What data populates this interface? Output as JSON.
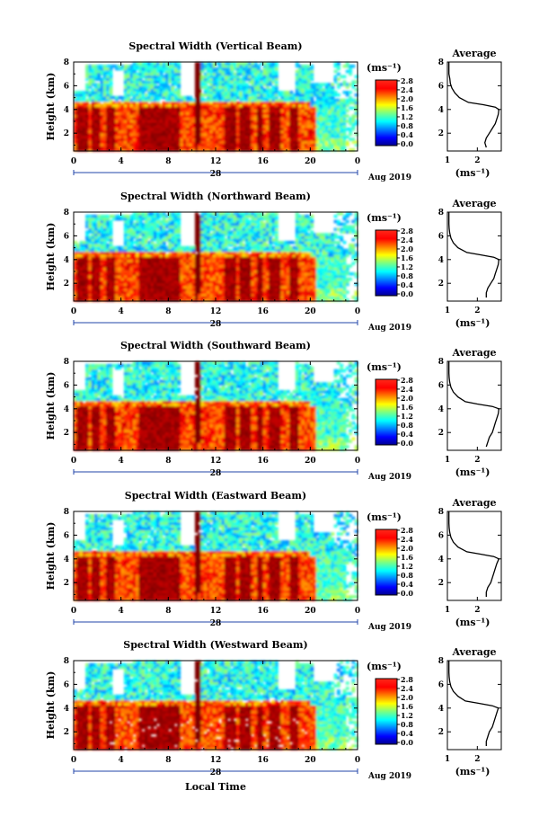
{
  "figure": {
    "xlabel": "Local Time",
    "y_axis_label": "Height (km)",
    "x_ticks": [
      "0",
      "4",
      "8",
      "12",
      "16",
      "20",
      "0"
    ],
    "day_label": "28",
    "month_label": "Aug 2019",
    "colorbar_unit": "(ms⁻¹)",
    "colorbar_ticks": [
      "0.0",
      "0.4",
      "0.8",
      "1.2",
      "1.6",
      "2.0",
      "2.4",
      "2.8"
    ],
    "profile_title": "Average",
    "profile_unit": "(ms⁻¹)",
    "profile_x_ticks": [
      "1",
      "2"
    ],
    "height_ticks": [
      "2",
      "4",
      "6",
      "8"
    ]
  },
  "chart_data": [
    {
      "type": "heatmap",
      "title": "Spectral Width (Vertical Beam)",
      "xlabel": "",
      "ylabel": "Height (km)",
      "xlim": [
        0,
        24
      ],
      "ylim": [
        0.5,
        8
      ],
      "clim": [
        0.0,
        2.8
      ],
      "colormap": "jet",
      "profile": {
        "title": "Average",
        "xlabel": "(ms⁻¹)",
        "xlim": [
          1,
          2.8
        ],
        "ylim": [
          0.5,
          8
        ],
        "heights": [
          0.8,
          1.2,
          1.6,
          2.0,
          2.4,
          2.8,
          3.2,
          3.6,
          4.0,
          4.2,
          4.4,
          4.6,
          5.0,
          5.4,
          5.8,
          6.2,
          6.6,
          7.0,
          7.5,
          8.0
        ],
        "values": [
          2.3,
          2.25,
          2.3,
          2.4,
          2.5,
          2.6,
          2.65,
          2.7,
          2.72,
          2.6,
          2.2,
          1.7,
          1.4,
          1.25,
          1.15,
          1.1,
          1.08,
          1.05,
          1.05,
          1.05
        ]
      }
    },
    {
      "type": "heatmap",
      "title": "Spectral Width (Northward Beam)",
      "xlabel": "",
      "ylabel": "Height (km)",
      "xlim": [
        0,
        24
      ],
      "ylim": [
        0.5,
        8
      ],
      "clim": [
        0.0,
        2.8
      ],
      "colormap": "jet",
      "profile": {
        "title": "Average",
        "xlabel": "(ms⁻¹)",
        "xlim": [
          1,
          2.8
        ],
        "ylim": [
          0.5,
          8
        ],
        "heights": [
          0.8,
          1.2,
          1.6,
          2.0,
          2.4,
          2.8,
          3.2,
          3.6,
          4.0,
          4.2,
          4.4,
          4.6,
          5.0,
          5.4,
          5.8,
          6.2,
          6.6,
          7.0,
          7.5,
          8.0
        ],
        "values": [
          2.3,
          2.3,
          2.35,
          2.45,
          2.55,
          2.6,
          2.65,
          2.7,
          2.72,
          2.55,
          2.1,
          1.65,
          1.35,
          1.2,
          1.12,
          1.08,
          1.06,
          1.05,
          1.05,
          1.05
        ]
      }
    },
    {
      "type": "heatmap",
      "title": "Spectral Width (Southward Beam)",
      "xlabel": "",
      "ylabel": "Height (km)",
      "xlim": [
        0,
        24
      ],
      "ylim": [
        0.5,
        8
      ],
      "clim": [
        0.0,
        2.8
      ],
      "colormap": "jet",
      "profile": {
        "title": "Average",
        "xlabel": "(ms⁻¹)",
        "xlim": [
          1,
          2.8
        ],
        "ylim": [
          0.5,
          8
        ],
        "heights": [
          0.8,
          1.2,
          1.6,
          2.0,
          2.4,
          2.8,
          3.2,
          3.6,
          4.0,
          4.2,
          4.4,
          4.6,
          5.0,
          5.4,
          5.8,
          6.2,
          6.6,
          7.0,
          7.5,
          8.0
        ],
        "values": [
          2.3,
          2.35,
          2.4,
          2.5,
          2.55,
          2.6,
          2.65,
          2.7,
          2.72,
          2.5,
          2.0,
          1.6,
          1.35,
          1.2,
          1.12,
          1.08,
          1.06,
          1.05,
          1.05,
          1.05
        ]
      }
    },
    {
      "type": "heatmap",
      "title": "Spectral Width (Eastward Beam)",
      "xlabel": "",
      "ylabel": "Height (km)",
      "xlim": [
        0,
        24
      ],
      "ylim": [
        0.5,
        8
      ],
      "clim": [
        0.0,
        2.8
      ],
      "colormap": "jet",
      "profile": {
        "title": "Average",
        "xlabel": "(ms⁻¹)",
        "xlim": [
          1,
          2.8
        ],
        "ylim": [
          0.5,
          8
        ],
        "heights": [
          0.8,
          1.2,
          1.6,
          2.0,
          2.4,
          2.8,
          3.2,
          3.6,
          4.0,
          4.2,
          4.4,
          4.6,
          5.0,
          5.4,
          5.8,
          6.2,
          6.6,
          7.0,
          7.5,
          8.0
        ],
        "values": [
          2.3,
          2.3,
          2.35,
          2.45,
          2.5,
          2.55,
          2.6,
          2.65,
          2.72,
          2.55,
          2.1,
          1.65,
          1.35,
          1.2,
          1.12,
          1.08,
          1.06,
          1.05,
          1.05,
          1.05
        ]
      }
    },
    {
      "type": "heatmap",
      "title": "Spectral Width (Westward Beam)",
      "xlabel": "Local Time",
      "ylabel": "Height (km)",
      "xlim": [
        0,
        24
      ],
      "ylim": [
        0.5,
        8
      ],
      "clim": [
        0.0,
        2.8
      ],
      "colormap": "jet",
      "profile": {
        "title": "Average",
        "xlabel": "(ms⁻¹)",
        "xlim": [
          1,
          2.8
        ],
        "ylim": [
          0.5,
          8
        ],
        "heights": [
          0.8,
          1.2,
          1.6,
          2.0,
          2.4,
          2.8,
          3.2,
          3.6,
          4.0,
          4.2,
          4.4,
          4.6,
          5.0,
          5.4,
          5.8,
          6.2,
          6.6,
          7.0,
          7.5,
          8.0
        ],
        "values": [
          2.3,
          2.3,
          2.35,
          2.4,
          2.5,
          2.55,
          2.6,
          2.65,
          2.7,
          2.5,
          2.05,
          1.6,
          1.35,
          1.2,
          1.12,
          1.08,
          1.06,
          1.05,
          1.05,
          1.05
        ]
      }
    }
  ]
}
